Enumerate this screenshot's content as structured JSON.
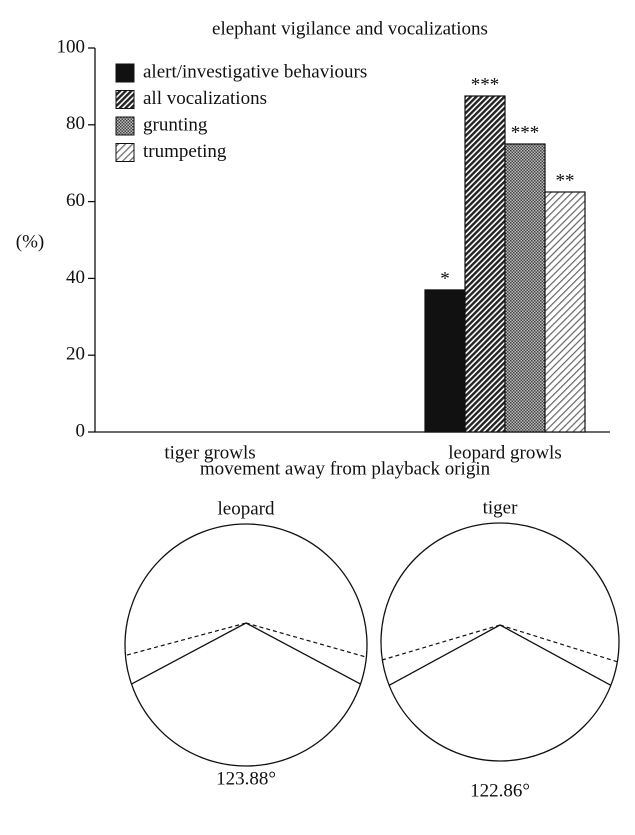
{
  "chart_data": {
    "type": "bar",
    "title": "elephant vigilance and vocalizations",
    "y_label": "(%)",
    "categories": [
      "tiger growls",
      "leopard growls"
    ],
    "series": [
      {
        "name": "alert/investigative behaviours",
        "color": "#111111",
        "pattern": "solid",
        "values": [
          0,
          37
        ],
        "annotations": [
          null,
          "*"
        ]
      },
      {
        "name": "all vocalizations",
        "color": "#222222",
        "pattern": "hatch-dense",
        "values": [
          0,
          87.5
        ],
        "annotations": [
          null,
          "***"
        ]
      },
      {
        "name": "grunting",
        "color": "#555555",
        "pattern": "cross",
        "values": [
          0,
          75
        ],
        "annotations": [
          null,
          "***"
        ]
      },
      {
        "name": "trumpeting",
        "color": "#777777",
        "pattern": "hatch-light",
        "values": [
          0,
          62.5
        ],
        "annotations": [
          null,
          "**"
        ]
      }
    ],
    "ylim": [
      0,
      100
    ],
    "yticks": [
      0,
      20,
      40,
      60,
      80,
      100
    ],
    "grid": false,
    "legend": "upper-left"
  },
  "diagram": {
    "title": "movement away from playback origin",
    "panels": [
      {
        "label": "leopard",
        "angle": 123.88,
        "angle_label": "123.88°"
      },
      {
        "label": "tiger",
        "angle": 122.86,
        "angle_label": "122.86°"
      }
    ]
  }
}
